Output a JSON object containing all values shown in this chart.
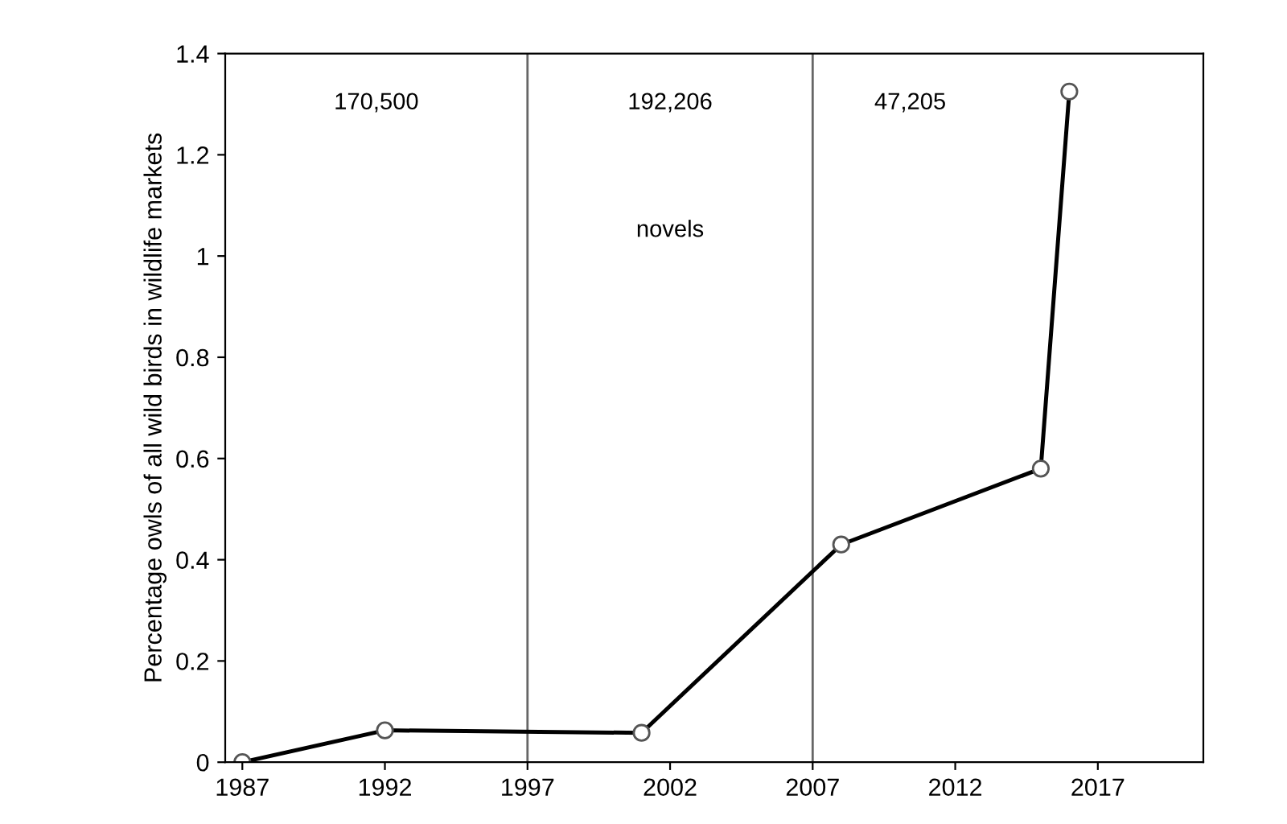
{
  "chart_data": {
    "type": "line",
    "ylabel": "Percentage owls of all wild birds in wildlife markets",
    "x": [
      1987,
      1992,
      2001,
      2008,
      2015,
      2016
    ],
    "series": [
      {
        "color": "#000000",
        "values": [
          0,
          0.063,
          0.058,
          0.43,
          0.58,
          1.325
        ]
      }
    ],
    "marker": "circle",
    "line_style": "solid",
    "grid": false,
    "legend": false,
    "xlim": [
      1986.4,
      2020.7
    ],
    "xticks": [
      1987,
      1992,
      1997,
      2002,
      2007,
      2012,
      2017
    ],
    "ylim": [
      0,
      1.4
    ],
    "yticks": [
      0,
      0.2,
      0.4,
      0.6,
      0.8,
      1,
      1.2,
      1.4
    ],
    "ref_lines": [
      {
        "axis": "x",
        "value": 1997,
        "color": "#666666"
      },
      {
        "axis": "x",
        "value": 2007,
        "color": "#666666"
      }
    ],
    "annotations": [
      "170,500",
      "192,206",
      "47,205",
      "novels"
    ]
  }
}
